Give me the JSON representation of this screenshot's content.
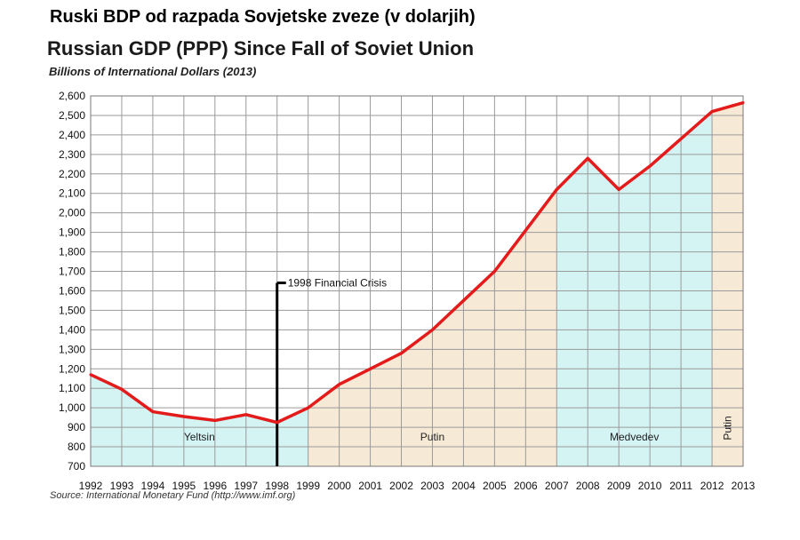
{
  "header": {
    "top_title": "Ruski BDP od razpada Sovjetske zveze (v dolarjih)"
  },
  "chart_data": {
    "type": "line",
    "title": "Russian GDP (PPP) Since Fall of Soviet Union",
    "subtitle": "Billions of International Dollars (2013)",
    "source": "Source: International Monetary Fund (http://www.imf.org)",
    "x": [
      "1992",
      "1993",
      "1994",
      "1995",
      "1996",
      "1997",
      "1998",
      "1999",
      "2000",
      "2001",
      "2002",
      "2003",
      "2004",
      "2005",
      "2006",
      "2007",
      "2008",
      "2009",
      "2010",
      "2011",
      "2012",
      "2013"
    ],
    "series": [
      {
        "values": [
          1170,
          1095,
          980,
          955,
          935,
          965,
          925,
          1000,
          1120,
          1200,
          1280,
          1400,
          1550,
          1700,
          1910,
          2120,
          2280,
          2120,
          2240,
          2380,
          2520,
          2565
        ]
      }
    ],
    "yticks": [
      "700",
      "800",
      "900",
      "1,000",
      "1,100",
      "1,200",
      "1,300",
      "1,400",
      "1,500",
      "1,600",
      "1,700",
      "1,800",
      "1,900",
      "2,000",
      "2,100",
      "2,200",
      "2,300",
      "2,400",
      "2,500",
      "2,600"
    ],
    "ylim": [
      700,
      2600
    ],
    "grid": true,
    "line_color": "#e41b1b",
    "eras": [
      {
        "label": "Yeltsin",
        "start": "1992",
        "end": "1999",
        "color": "#d4f3f3"
      },
      {
        "label": "Putin",
        "start": "1999",
        "end": "2007",
        "color": "#f6e9d6"
      },
      {
        "label": "Medvedev",
        "start": "2007",
        "end": "2012",
        "color": "#d4f3f3"
      },
      {
        "label": "Putin",
        "start": "2012",
        "end": "2013",
        "color": "#f6e9d6"
      }
    ],
    "annotation": {
      "label": "1998 Financial Crisis",
      "x": "1998",
      "y_top": 1650
    }
  }
}
